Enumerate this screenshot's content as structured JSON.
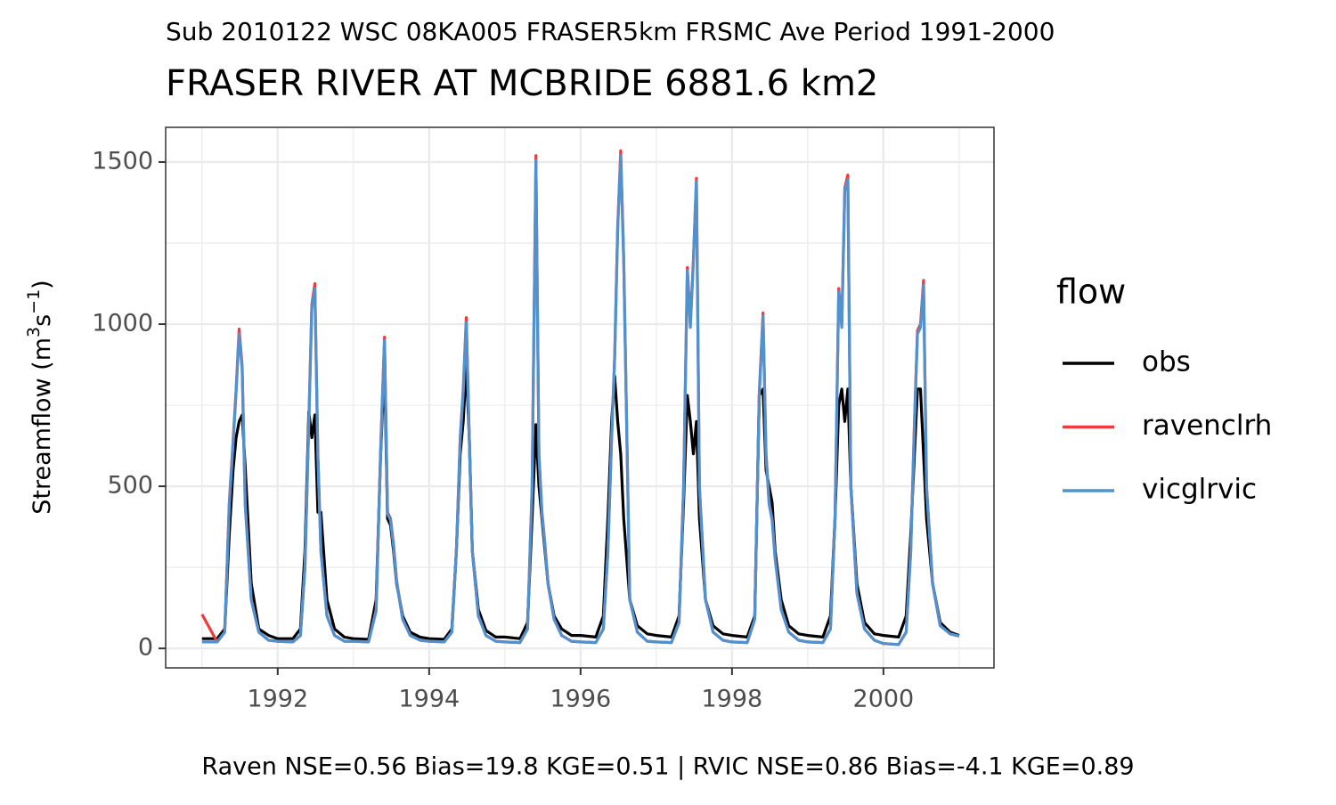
{
  "chart_data": {
    "type": "line",
    "subtitle": "Sub 2010122 WSC 08KA005 FRASER5km FRSMC Ave Period 1991-2000",
    "title": "FRASER RIVER AT MCBRIDE 6881.6 km2",
    "ylabel": {
      "text": "Streamflow (m",
      "sup1": "3",
      "mid": "s",
      "sup2": "−1",
      "end": ")"
    },
    "caption": "Raven NSE=0.56 Bias=19.8 KGE=0.51 | RVIC NSE=0.86 Bias=-4.1 KGE=0.89",
    "legend_title": "flow",
    "legend_position": "right",
    "grid": true,
    "xlim": [
      1990.52,
      2001.46
    ],
    "ylim": [
      -60,
      1607
    ],
    "xticks": [
      1992,
      1994,
      1996,
      1998,
      2000
    ],
    "yticks": [
      0,
      500,
      1000,
      1500
    ],
    "xminor_ticks": [
      1991,
      1993,
      1995,
      1997,
      1999,
      2001
    ],
    "yminor_ticks": [
      250,
      750,
      1250
    ],
    "x": [
      1991.0,
      1991.2,
      1991.3,
      1991.36,
      1991.41,
      1991.45,
      1991.49,
      1991.53,
      1991.57,
      1991.65,
      1991.75,
      1991.88,
      1992.0,
      1992.2,
      1992.3,
      1992.36,
      1992.41,
      1992.45,
      1992.49,
      1992.53,
      1992.57,
      1992.65,
      1992.75,
      1992.88,
      1993.0,
      1993.2,
      1993.3,
      1993.36,
      1993.41,
      1993.45,
      1993.49,
      1993.53,
      1993.57,
      1993.65,
      1993.75,
      1993.88,
      1994.0,
      1994.2,
      1994.3,
      1994.36,
      1994.41,
      1994.45,
      1994.49,
      1994.53,
      1994.57,
      1994.65,
      1994.75,
      1994.88,
      1995.0,
      1995.2,
      1995.3,
      1995.36,
      1995.41,
      1995.45,
      1995.49,
      1995.53,
      1995.57,
      1995.65,
      1995.75,
      1995.88,
      1996.0,
      1996.2,
      1996.3,
      1996.36,
      1996.41,
      1996.45,
      1996.49,
      1996.53,
      1996.57,
      1996.65,
      1996.75,
      1996.88,
      1997.0,
      1997.2,
      1997.3,
      1997.36,
      1997.41,
      1997.45,
      1997.49,
      1997.53,
      1997.57,
      1997.65,
      1997.75,
      1997.88,
      1998.0,
      1998.2,
      1998.3,
      1998.36,
      1998.41,
      1998.45,
      1998.49,
      1998.53,
      1998.57,
      1998.65,
      1998.75,
      1998.88,
      1999.0,
      1999.2,
      1999.3,
      1999.36,
      1999.41,
      1999.45,
      1999.49,
      1999.53,
      1999.57,
      1999.65,
      1999.75,
      1999.88,
      2000.0,
      2000.2,
      2000.3,
      2000.36,
      2000.41,
      2000.45,
      2000.49,
      2000.53,
      2000.57,
      2000.65,
      2000.75,
      2000.88,
      2001.0
    ],
    "series": [
      {
        "name": "obs",
        "color": "#000000",
        "values": [
          30,
          30,
          60,
          350,
          550,
          650,
          700,
          720,
          560,
          200,
          60,
          40,
          30,
          30,
          60,
          300,
          730,
          650,
          720,
          420,
          420,
          150,
          60,
          35,
          30,
          28,
          150,
          600,
          880,
          400,
          380,
          300,
          200,
          100,
          50,
          35,
          30,
          28,
          60,
          300,
          600,
          700,
          870,
          650,
          300,
          120,
          55,
          35,
          35,
          30,
          80,
          400,
          690,
          500,
          400,
          300,
          200,
          100,
          60,
          40,
          40,
          35,
          100,
          400,
          700,
          840,
          700,
          600,
          400,
          150,
          70,
          45,
          40,
          35,
          100,
          450,
          780,
          700,
          600,
          700,
          400,
          150,
          70,
          45,
          40,
          35,
          100,
          780,
          800,
          550,
          500,
          450,
          300,
          150,
          70,
          45,
          40,
          35,
          100,
          400,
          750,
          800,
          700,
          800,
          500,
          200,
          80,
          45,
          40,
          35,
          100,
          350,
          600,
          800,
          800,
          600,
          400,
          200,
          80,
          50,
          40
        ]
      },
      {
        "name": "ravenclrh",
        "color": "#f03b3b",
        "values": [
          105,
          20,
          50,
          450,
          640,
          800,
          985,
          870,
          450,
          150,
          50,
          25,
          22,
          20,
          40,
          250,
          700,
          1060,
          1125,
          600,
          300,
          100,
          40,
          22,
          22,
          20,
          120,
          620,
          960,
          420,
          400,
          320,
          210,
          90,
          40,
          25,
          22,
          20,
          50,
          300,
          650,
          800,
          1020,
          650,
          300,
          100,
          40,
          22,
          20,
          18,
          60,
          500,
          1520,
          600,
          420,
          320,
          200,
          90,
          40,
          22,
          20,
          18,
          60,
          300,
          650,
          900,
          1300,
          1535,
          1200,
          150,
          50,
          22,
          20,
          18,
          80,
          500,
          1175,
          1000,
          1200,
          1450,
          500,
          150,
          50,
          25,
          20,
          18,
          90,
          790,
          1035,
          600,
          450,
          400,
          280,
          120,
          50,
          25,
          20,
          18,
          60,
          400,
          1110,
          1000,
          1420,
          1460,
          500,
          170,
          60,
          25,
          15,
          12,
          50,
          300,
          700,
          980,
          1000,
          1135,
          500,
          200,
          70,
          45,
          38
        ]
      },
      {
        "name": "vicglrvic",
        "color": "#5092d0",
        "values": [
          20,
          20,
          50,
          440,
          630,
          790,
          970,
          860,
          440,
          150,
          50,
          25,
          22,
          20,
          40,
          250,
          690,
          1050,
          1110,
          590,
          300,
          100,
          40,
          22,
          22,
          20,
          115,
          610,
          950,
          415,
          395,
          315,
          205,
          90,
          40,
          25,
          22,
          20,
          50,
          295,
          645,
          790,
          1005,
          645,
          300,
          100,
          40,
          22,
          20,
          18,
          60,
          490,
          1505,
          595,
          415,
          315,
          200,
          90,
          40,
          22,
          20,
          18,
          60,
          295,
          645,
          890,
          1290,
          1520,
          1190,
          150,
          50,
          22,
          20,
          18,
          80,
          495,
          1165,
          990,
          1190,
          1440,
          495,
          150,
          50,
          25,
          20,
          18,
          90,
          780,
          1025,
          595,
          445,
          395,
          275,
          120,
          50,
          25,
          20,
          18,
          60,
          395,
          1100,
          990,
          1410,
          1445,
          495,
          170,
          60,
          25,
          15,
          12,
          50,
          295,
          690,
          970,
          990,
          1120,
          495,
          200,
          70,
          45,
          38
        ]
      }
    ]
  }
}
